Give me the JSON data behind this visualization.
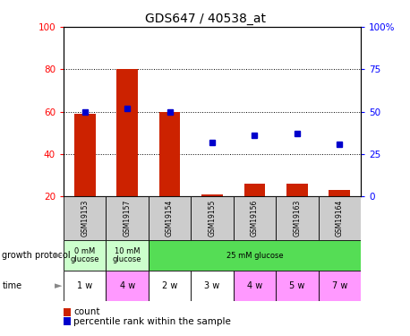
{
  "title": "GDS647 / 40538_at",
  "samples": [
    "GSM19153",
    "GSM19157",
    "GSM19154",
    "GSM19155",
    "GSM19156",
    "GSM19163",
    "GSM19164"
  ],
  "counts": [
    59,
    80,
    60,
    21,
    26,
    26,
    23
  ],
  "percentile_ranks": [
    50,
    52,
    50,
    32,
    36,
    37,
    31
  ],
  "growth_protocol_spans": [
    {
      "label": "0 mM\nglucose",
      "start": 0,
      "end": 1,
      "color": "#ccffcc"
    },
    {
      "label": "10 mM\nglucose",
      "start": 1,
      "end": 2,
      "color": "#ccffcc"
    },
    {
      "label": "25 mM glucose",
      "start": 2,
      "end": 7,
      "color": "#55dd55"
    }
  ],
  "time_labels": [
    "1 w",
    "4 w",
    "2 w",
    "3 w",
    "4 w",
    "5 w",
    "7 w"
  ],
  "time_colors": [
    "#ffffff",
    "#ff99ff",
    "#ffffff",
    "#ffffff",
    "#ff99ff",
    "#ff99ff",
    "#ff99ff"
  ],
  "bar_color": "#cc2200",
  "dot_color": "#0000cc",
  "ylim_left": [
    20,
    100
  ],
  "ylim_right": [
    0,
    100
  ],
  "yticks_left": [
    20,
    40,
    60,
    80,
    100
  ],
  "yticks_right": [
    0,
    25,
    50,
    75,
    100
  ],
  "ytick_right_labels": [
    "0",
    "25",
    "50",
    "75",
    "100%"
  ],
  "plot_bg": "#ffffff",
  "sample_bg": "#cccccc"
}
